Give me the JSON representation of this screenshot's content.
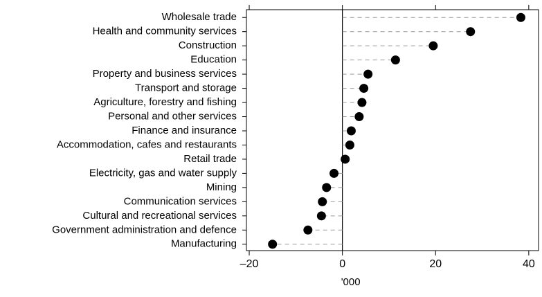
{
  "chart_data": {
    "type": "dot",
    "categories": [
      "Wholesale trade",
      "Health and community services",
      "Construction",
      "Education",
      "Property and business services",
      "Transport and storage",
      "Agriculture, forestry and fishing",
      "Personal and other services",
      "Finance and insurance",
      "Accommodation, cafes and restaurants",
      "Retail trade",
      "Electricity, gas and water supply",
      "Mining",
      "Communication services",
      "Cultural and recreational services",
      "Government administration and defence",
      "Manufacturing"
    ],
    "values": [
      38.3,
      27.5,
      19.5,
      11.4,
      5.5,
      4.6,
      4.2,
      3.6,
      1.9,
      1.6,
      0.6,
      -1.8,
      -3.4,
      -4.3,
      -4.5,
      -7.4,
      -15.0
    ],
    "color": "#000000",
    "x_label": "'000",
    "xlim": [
      -20.6,
      42.1
    ],
    "xticks": [
      {
        "value": -20,
        "label": "–20"
      },
      0,
      20,
      40
    ]
  }
}
